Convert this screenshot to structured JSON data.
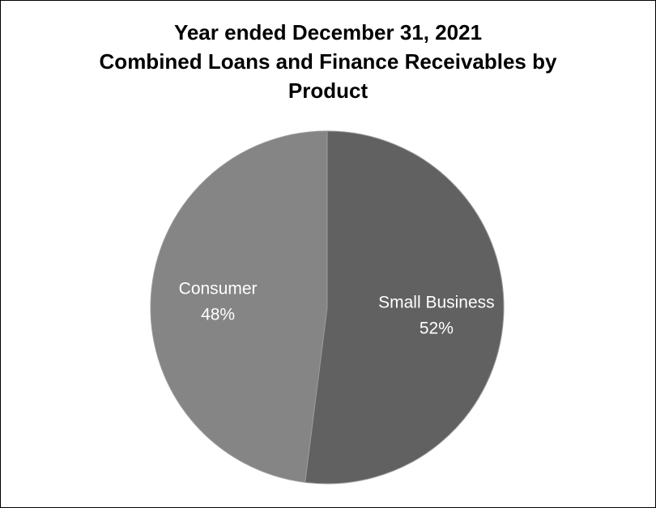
{
  "chart_data": {
    "type": "pie",
    "title_lines": [
      "Year ended December 31, 2021",
      "Combined Loans and Finance Receivables by",
      "Product"
    ],
    "slices": [
      {
        "label": "Small Business",
        "value": 52,
        "value_label": "52%",
        "color": "#616161"
      },
      {
        "label": "Consumer",
        "value": 48,
        "value_label": "48%",
        "color": "#858585"
      }
    ],
    "start_angle_deg": 0,
    "direction": "clockwise",
    "legend": "none",
    "slice_border_color": "#9a9a9a"
  }
}
